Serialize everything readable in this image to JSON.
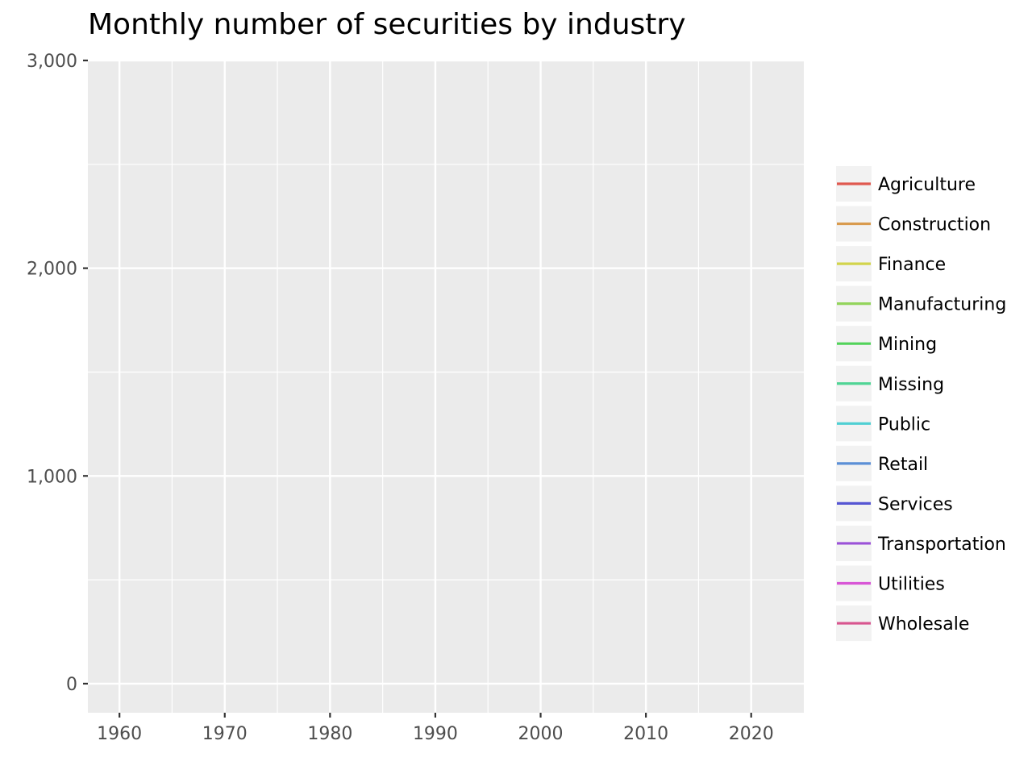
{
  "chart_data": {
    "type": "line",
    "title": "Monthly number of securities by industry",
    "xlabel": "",
    "ylabel": "",
    "xlim": [
      1957,
      2025
    ],
    "ylim": [
      -140,
      3000
    ],
    "x_ticks": [
      1960,
      1970,
      1980,
      1990,
      2000,
      2010,
      2020
    ],
    "x_tick_labels": [
      "1960",
      "1970",
      "1980",
      "1990",
      "2000",
      "2010",
      "2020"
    ],
    "y_ticks": [
      0,
      1000,
      2000,
      3000
    ],
    "y_tick_labels": [
      "0",
      "1,000",
      "2,000",
      "3,000"
    ],
    "grid": true,
    "legend_position": "right",
    "series": [
      {
        "name": "Agriculture",
        "color": "#e0594f",
        "x": [],
        "y": []
      },
      {
        "name": "Construction",
        "color": "#d99b4e",
        "x": [],
        "y": []
      },
      {
        "name": "Finance",
        "color": "#d2d44c",
        "x": [],
        "y": []
      },
      {
        "name": "Manufacturing",
        "color": "#93d45c",
        "x": [],
        "y": []
      },
      {
        "name": "Mining",
        "color": "#52d35a",
        "x": [],
        "y": []
      },
      {
        "name": "Missing",
        "color": "#4fd495",
        "x": [],
        "y": []
      },
      {
        "name": "Public",
        "color": "#4fcfd3",
        "x": [],
        "y": []
      },
      {
        "name": "Retail",
        "color": "#5b8fd6",
        "x": [],
        "y": []
      },
      {
        "name": "Services",
        "color": "#5656d3",
        "x": [],
        "y": []
      },
      {
        "name": "Transportation",
        "color": "#9b52d8",
        "x": [],
        "y": []
      },
      {
        "name": "Utilities",
        "color": "#d855d6",
        "x": [],
        "y": []
      },
      {
        "name": "Wholesale",
        "color": "#d8558f",
        "x": [],
        "y": []
      }
    ]
  }
}
